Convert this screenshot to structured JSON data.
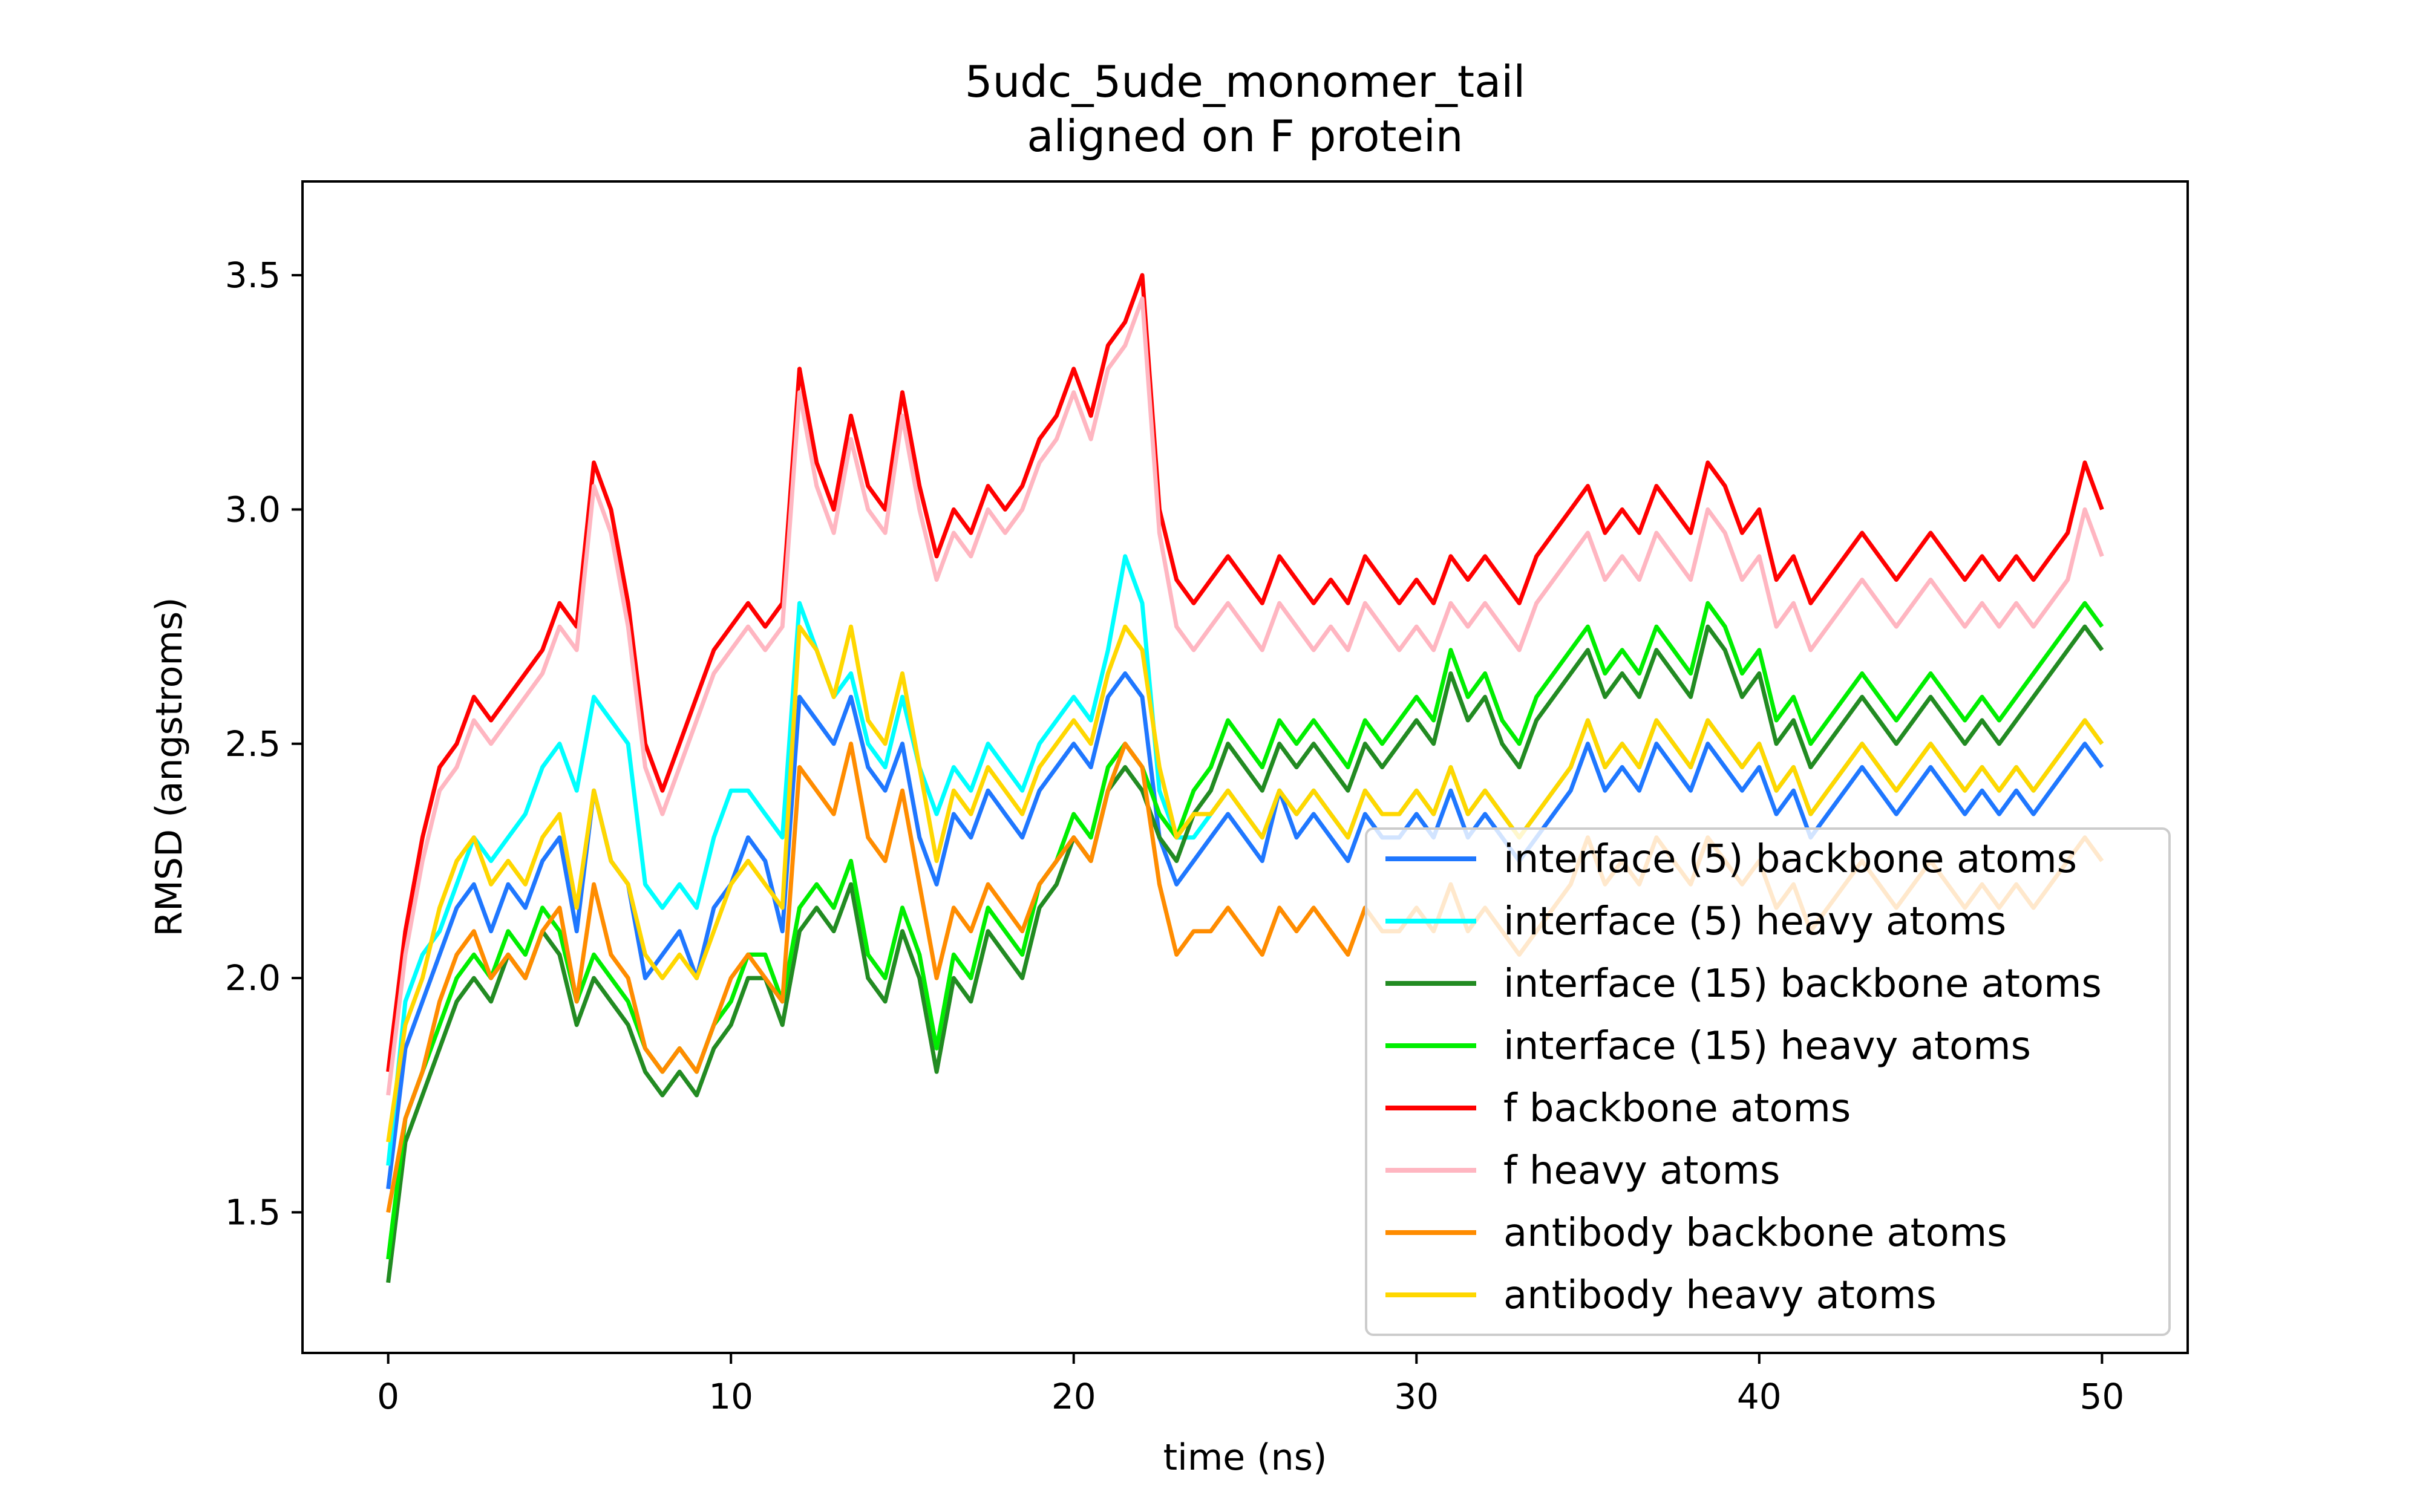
{
  "chart_data": {
    "type": "line",
    "title": "5udc_5ude_monomer_tail",
    "subtitle": "aligned on F protein",
    "xlabel": "time (ns)",
    "ylabel": "RMSD (angstroms)",
    "xlim": [
      -2.5,
      52.5
    ],
    "ylim": [
      1.2,
      3.7
    ],
    "xticks": [
      0,
      10,
      20,
      30,
      40,
      50
    ],
    "yticks": [
      1.5,
      2.0,
      2.5,
      3.0,
      3.5
    ],
    "xtick_labels": [
      "0",
      "10",
      "20",
      "30",
      "40",
      "50"
    ],
    "ytick_labels": [
      "1.5",
      "2.0",
      "2.5",
      "3.0",
      "3.5"
    ],
    "grid": false,
    "legend_position": "lower-right",
    "x": [
      0,
      0.5,
      1,
      1.5,
      2,
      2.5,
      3,
      3.5,
      4,
      4.5,
      5,
      5.5,
      6,
      6.5,
      7,
      7.5,
      8,
      8.5,
      9,
      9.5,
      10,
      10.5,
      11,
      11.5,
      12,
      12.5,
      13,
      13.5,
      14,
      14.5,
      15,
      15.5,
      16,
      16.5,
      17,
      17.5,
      18,
      18.5,
      19,
      19.5,
      20,
      20.5,
      21,
      21.5,
      22,
      22.5,
      23,
      23.5,
      24,
      24.5,
      25,
      25.5,
      26,
      26.5,
      27,
      27.5,
      28,
      28.5,
      29,
      29.5,
      30,
      30.5,
      31,
      31.5,
      32,
      32.5,
      33,
      33.5,
      34,
      34.5,
      35,
      35.5,
      36,
      36.5,
      37,
      37.5,
      38,
      38.5,
      39,
      39.5,
      40,
      40.5,
      41,
      41.5,
      42,
      42.5,
      43,
      43.5,
      44,
      44.5,
      45,
      45.5,
      46,
      46.5,
      47,
      47.5,
      48,
      48.5,
      49,
      49.5,
      50
    ],
    "series": [
      {
        "name": "interface (5) backbone atoms",
        "color": "#1f77ff",
        "values": [
          1.55,
          1.85,
          1.95,
          2.05,
          2.15,
          2.2,
          2.1,
          2.2,
          2.15,
          2.25,
          2.3,
          2.1,
          2.4,
          2.25,
          2.2,
          2.0,
          2.05,
          2.1,
          2.0,
          2.15,
          2.2,
          2.3,
          2.25,
          2.1,
          2.6,
          2.55,
          2.5,
          2.6,
          2.45,
          2.4,
          2.5,
          2.3,
          2.2,
          2.35,
          2.3,
          2.4,
          2.35,
          2.3,
          2.4,
          2.45,
          2.5,
          2.45,
          2.6,
          2.65,
          2.6,
          2.3,
          2.2,
          2.25,
          2.3,
          2.35,
          2.3,
          2.25,
          2.4,
          2.3,
          2.35,
          2.3,
          2.25,
          2.35,
          2.3,
          2.3,
          2.35,
          2.3,
          2.4,
          2.3,
          2.35,
          2.3,
          2.25,
          2.3,
          2.35,
          2.4,
          2.5,
          2.4,
          2.45,
          2.4,
          2.5,
          2.45,
          2.4,
          2.5,
          2.45,
          2.4,
          2.45,
          2.35,
          2.4,
          2.3,
          2.35,
          2.4,
          2.45,
          2.4,
          2.35,
          2.4,
          2.45,
          2.4,
          2.35,
          2.4,
          2.35,
          2.4,
          2.35,
          2.4,
          2.45,
          2.5,
          2.45
        ]
      },
      {
        "name": "interface (5) heavy atoms",
        "color": "#00ffff",
        "values": [
          1.6,
          1.95,
          2.05,
          2.1,
          2.2,
          2.3,
          2.25,
          2.3,
          2.35,
          2.45,
          2.5,
          2.4,
          2.6,
          2.55,
          2.5,
          2.2,
          2.15,
          2.2,
          2.15,
          2.3,
          2.4,
          2.4,
          2.35,
          2.3,
          2.8,
          2.7,
          2.6,
          2.65,
          2.5,
          2.45,
          2.6,
          2.45,
          2.35,
          2.45,
          2.4,
          2.5,
          2.45,
          2.4,
          2.5,
          2.55,
          2.6,
          2.55,
          2.7,
          2.9,
          2.8,
          2.4,
          2.3,
          2.3,
          2.35,
          2.4,
          2.35,
          2.3,
          2.4,
          2.35,
          2.4,
          2.35,
          2.3,
          2.4,
          2.35,
          2.35,
          2.4,
          2.35,
          2.45,
          2.35,
          2.4,
          2.35,
          2.3,
          2.35,
          2.4,
          2.45,
          2.55,
          2.45,
          2.5,
          2.45,
          2.55,
          2.5,
          2.45,
          2.55,
          2.5,
          2.45,
          2.5,
          2.4,
          2.45,
          2.35,
          2.4,
          2.45,
          2.5,
          2.45,
          2.4,
          2.45,
          2.5,
          2.45,
          2.4,
          2.45,
          2.4,
          2.45,
          2.4,
          2.45,
          2.5,
          2.55,
          2.5
        ]
      },
      {
        "name": "interface (15) backbone atoms",
        "color": "#228b22",
        "values": [
          1.35,
          1.65,
          1.75,
          1.85,
          1.95,
          2.0,
          1.95,
          2.05,
          2.0,
          2.1,
          2.05,
          1.9,
          2.0,
          1.95,
          1.9,
          1.8,
          1.75,
          1.8,
          1.75,
          1.85,
          1.9,
          2.0,
          2.0,
          1.9,
          2.1,
          2.15,
          2.1,
          2.2,
          2.0,
          1.95,
          2.1,
          2.0,
          1.8,
          2.0,
          1.95,
          2.1,
          2.05,
          2.0,
          2.15,
          2.2,
          2.3,
          2.25,
          2.4,
          2.45,
          2.4,
          2.3,
          2.25,
          2.35,
          2.4,
          2.5,
          2.45,
          2.4,
          2.5,
          2.45,
          2.5,
          2.45,
          2.4,
          2.5,
          2.45,
          2.5,
          2.55,
          2.5,
          2.65,
          2.55,
          2.6,
          2.5,
          2.45,
          2.55,
          2.6,
          2.65,
          2.7,
          2.6,
          2.65,
          2.6,
          2.7,
          2.65,
          2.6,
          2.75,
          2.7,
          2.6,
          2.65,
          2.5,
          2.55,
          2.45,
          2.5,
          2.55,
          2.6,
          2.55,
          2.5,
          2.55,
          2.6,
          2.55,
          2.5,
          2.55,
          2.5,
          2.55,
          2.6,
          2.65,
          2.7,
          2.75,
          2.7
        ]
      },
      {
        "name": "interface (15) heavy atoms",
        "color": "#00ee00",
        "values": [
          1.4,
          1.7,
          1.8,
          1.9,
          2.0,
          2.05,
          2.0,
          2.1,
          2.05,
          2.15,
          2.1,
          1.95,
          2.05,
          2.0,
          1.95,
          1.85,
          1.8,
          1.85,
          1.8,
          1.9,
          1.95,
          2.05,
          2.05,
          1.95,
          2.15,
          2.2,
          2.15,
          2.25,
          2.05,
          2.0,
          2.15,
          2.05,
          1.85,
          2.05,
          2.0,
          2.15,
          2.1,
          2.05,
          2.2,
          2.25,
          2.35,
          2.3,
          2.45,
          2.5,
          2.45,
          2.35,
          2.3,
          2.4,
          2.45,
          2.55,
          2.5,
          2.45,
          2.55,
          2.5,
          2.55,
          2.5,
          2.45,
          2.55,
          2.5,
          2.55,
          2.6,
          2.55,
          2.7,
          2.6,
          2.65,
          2.55,
          2.5,
          2.6,
          2.65,
          2.7,
          2.75,
          2.65,
          2.7,
          2.65,
          2.75,
          2.7,
          2.65,
          2.8,
          2.75,
          2.65,
          2.7,
          2.55,
          2.6,
          2.5,
          2.55,
          2.6,
          2.65,
          2.6,
          2.55,
          2.6,
          2.65,
          2.6,
          2.55,
          2.6,
          2.55,
          2.6,
          2.65,
          2.7,
          2.75,
          2.8,
          2.75
        ]
      },
      {
        "name": "f backbone atoms",
        "color": "#ff0000",
        "values": [
          1.8,
          2.1,
          2.3,
          2.45,
          2.5,
          2.6,
          2.55,
          2.6,
          2.65,
          2.7,
          2.8,
          2.75,
          3.1,
          3.0,
          2.8,
          2.5,
          2.4,
          2.5,
          2.6,
          2.7,
          2.75,
          2.8,
          2.75,
          2.8,
          3.3,
          3.1,
          3.0,
          3.2,
          3.05,
          3.0,
          3.25,
          3.05,
          2.9,
          3.0,
          2.95,
          3.05,
          3.0,
          3.05,
          3.15,
          3.2,
          3.3,
          3.2,
          3.35,
          3.4,
          3.5,
          3.0,
          2.85,
          2.8,
          2.85,
          2.9,
          2.85,
          2.8,
          2.9,
          2.85,
          2.8,
          2.85,
          2.8,
          2.9,
          2.85,
          2.8,
          2.85,
          2.8,
          2.9,
          2.85,
          2.9,
          2.85,
          2.8,
          2.9,
          2.95,
          3.0,
          3.05,
          2.95,
          3.0,
          2.95,
          3.05,
          3.0,
          2.95,
          3.1,
          3.05,
          2.95,
          3.0,
          2.85,
          2.9,
          2.8,
          2.85,
          2.9,
          2.95,
          2.9,
          2.85,
          2.9,
          2.95,
          2.9,
          2.85,
          2.9,
          2.85,
          2.9,
          2.85,
          2.9,
          2.95,
          3.1,
          3.0
        ]
      },
      {
        "name": "f heavy atoms",
        "color": "#ffb6c1",
        "values": [
          1.75,
          2.05,
          2.25,
          2.4,
          2.45,
          2.55,
          2.5,
          2.55,
          2.6,
          2.65,
          2.75,
          2.7,
          3.05,
          2.95,
          2.75,
          2.45,
          2.35,
          2.45,
          2.55,
          2.65,
          2.7,
          2.75,
          2.7,
          2.75,
          3.25,
          3.05,
          2.95,
          3.15,
          3.0,
          2.95,
          3.2,
          3.0,
          2.85,
          2.95,
          2.9,
          3.0,
          2.95,
          3.0,
          3.1,
          3.15,
          3.25,
          3.15,
          3.3,
          3.35,
          3.45,
          2.95,
          2.75,
          2.7,
          2.75,
          2.8,
          2.75,
          2.7,
          2.8,
          2.75,
          2.7,
          2.75,
          2.7,
          2.8,
          2.75,
          2.7,
          2.75,
          2.7,
          2.8,
          2.75,
          2.8,
          2.75,
          2.7,
          2.8,
          2.85,
          2.9,
          2.95,
          2.85,
          2.9,
          2.85,
          2.95,
          2.9,
          2.85,
          3.0,
          2.95,
          2.85,
          2.9,
          2.75,
          2.8,
          2.7,
          2.75,
          2.8,
          2.85,
          2.8,
          2.75,
          2.8,
          2.85,
          2.8,
          2.75,
          2.8,
          2.75,
          2.8,
          2.75,
          2.8,
          2.85,
          3.0,
          2.9
        ]
      },
      {
        "name": "antibody backbone atoms",
        "color": "#ff8c00",
        "values": [
          1.5,
          1.7,
          1.8,
          1.95,
          2.05,
          2.1,
          2.0,
          2.05,
          2.0,
          2.1,
          2.15,
          1.95,
          2.2,
          2.05,
          2.0,
          1.85,
          1.8,
          1.85,
          1.8,
          1.9,
          2.0,
          2.05,
          2.0,
          1.95,
          2.45,
          2.4,
          2.35,
          2.5,
          2.3,
          2.25,
          2.4,
          2.2,
          2.0,
          2.15,
          2.1,
          2.2,
          2.15,
          2.1,
          2.2,
          2.25,
          2.3,
          2.25,
          2.4,
          2.5,
          2.45,
          2.2,
          2.05,
          2.1,
          2.1,
          2.15,
          2.1,
          2.05,
          2.15,
          2.1,
          2.15,
          2.1,
          2.05,
          2.15,
          2.1,
          2.1,
          2.15,
          2.1,
          2.2,
          2.1,
          2.15,
          2.1,
          2.05,
          2.1,
          2.15,
          2.2,
          2.3,
          2.2,
          2.25,
          2.2,
          2.3,
          2.25,
          2.2,
          2.3,
          2.25,
          2.2,
          2.25,
          2.15,
          2.2,
          2.1,
          2.15,
          2.2,
          2.25,
          2.2,
          2.15,
          2.2,
          2.25,
          2.2,
          2.15,
          2.2,
          2.15,
          2.2,
          2.15,
          2.2,
          2.25,
          2.3,
          2.25
        ]
      },
      {
        "name": "antibody heavy atoms",
        "color": "#ffd700",
        "values": [
          1.65,
          1.9,
          2.0,
          2.15,
          2.25,
          2.3,
          2.2,
          2.25,
          2.2,
          2.3,
          2.35,
          2.15,
          2.4,
          2.25,
          2.2,
          2.05,
          2.0,
          2.05,
          2.0,
          2.1,
          2.2,
          2.25,
          2.2,
          2.15,
          2.75,
          2.7,
          2.6,
          2.75,
          2.55,
          2.5,
          2.65,
          2.45,
          2.25,
          2.4,
          2.35,
          2.45,
          2.4,
          2.35,
          2.45,
          2.5,
          2.55,
          2.5,
          2.65,
          2.75,
          2.7,
          2.45,
          2.3,
          2.35,
          2.35,
          2.4,
          2.35,
          2.3,
          2.4,
          2.35,
          2.4,
          2.35,
          2.3,
          2.4,
          2.35,
          2.35,
          2.4,
          2.35,
          2.45,
          2.35,
          2.4,
          2.35,
          2.3,
          2.35,
          2.4,
          2.45,
          2.55,
          2.45,
          2.5,
          2.45,
          2.55,
          2.5,
          2.45,
          2.55,
          2.5,
          2.45,
          2.5,
          2.4,
          2.45,
          2.35,
          2.4,
          2.45,
          2.5,
          2.45,
          2.4,
          2.45,
          2.5,
          2.45,
          2.4,
          2.45,
          2.4,
          2.45,
          2.4,
          2.45,
          2.5,
          2.55,
          2.5
        ]
      }
    ]
  }
}
